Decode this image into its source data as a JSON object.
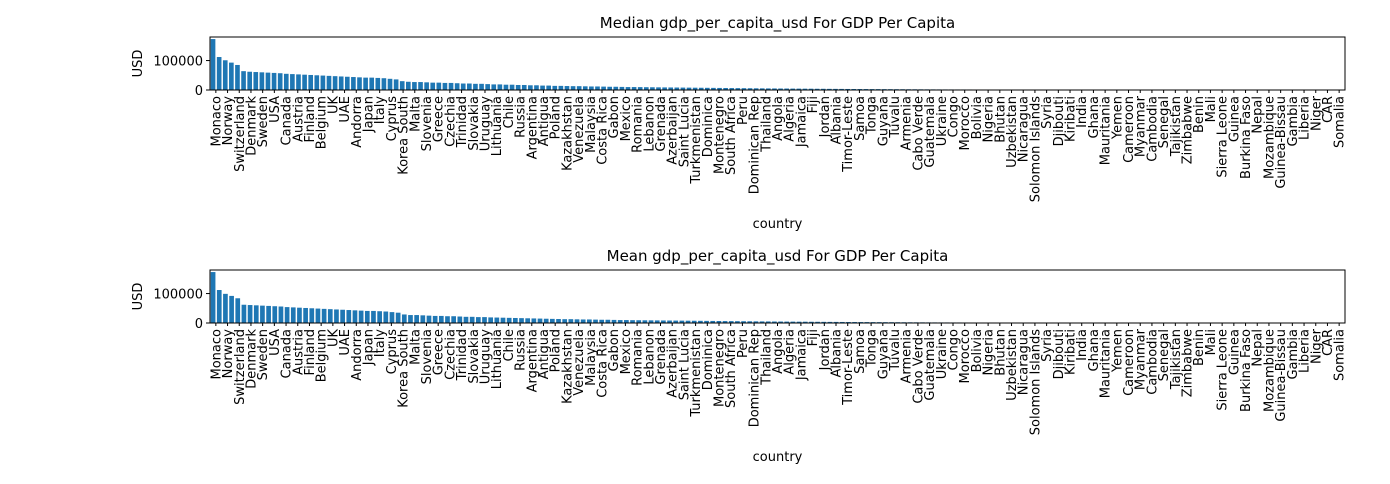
{
  "chart_data": [
    {
      "type": "bar",
      "title": "Median gdp_per_capita_usd For GDP Per Capita",
      "xlabel": "country",
      "ylabel": "USD",
      "yticks": [
        "0",
        "100000"
      ],
      "ylim": [
        0,
        180000
      ],
      "grid": false,
      "bar_color": "#1f77b4",
      "labeled_categories": [
        "Monaco",
        "Norway",
        "Switzerland",
        "Denmark",
        "Sweden",
        "USA",
        "Canada",
        "Austria",
        "Finland",
        "Belgium",
        "UK",
        "UAE",
        "Andorra",
        "Japan",
        "Italy",
        "Cyprus",
        "Korea South",
        "Malta",
        "Slovenia",
        "Greece",
        "Czechia",
        "Trinidad",
        "Slovakia",
        "Uruguay",
        "Lithuania",
        "Chile",
        "Russia",
        "Argentina",
        "Antigua",
        "Poland",
        "Kazakhstan",
        "Venezuela",
        "Malaysia",
        "Costa Rica",
        "Gabon",
        "Mexico",
        "Romania",
        "Lebanon",
        "Grenada",
        "Azerbaijan",
        "Saint Lucia",
        "Turkmenistan",
        "Dominica",
        "Montenegro",
        "South Africa",
        "Peru",
        "Dominican Rep",
        "Thailand",
        "Angola",
        "Algeria",
        "Jamaica",
        "Fiji",
        "Jordan",
        "Albania",
        "Timor-Leste",
        "Samoa",
        "Tonga",
        "Guyana",
        "Tuvalu",
        "Armenia",
        "Cabo Verde",
        "Guatemala",
        "Ukraine",
        "Congo",
        "Morocco",
        "Bolivia",
        "Nigeria",
        "Bhutan",
        "Uzbekistan",
        "Nicaragua",
        "Solomon Islands",
        "Syria",
        "Djibouti",
        "Kiribati",
        "India",
        "Ghana",
        "Mauritania",
        "Yemen",
        "Cameroon",
        "Myanmar",
        "Cambodia",
        "Senegal",
        "Tajikistan",
        "Zimbabwe",
        "Benin",
        "Mali",
        "Sierra Leone",
        "Guinea",
        "Burkina Faso",
        "Nepal",
        "Mozambique",
        "Guinea-Bissau",
        "Gambia",
        "Liberia",
        "Niger",
        "CAR",
        "Somalia"
      ],
      "values": [
        173000,
        112000,
        101000,
        93000,
        85000,
        64000,
        62000,
        61000,
        60000,
        59000,
        58000,
        57000,
        55000,
        54000,
        53000,
        52000,
        51000,
        50000,
        49000,
        48000,
        47000,
        46000,
        45000,
        44000,
        43000,
        42000,
        42000,
        41000,
        40000,
        38000,
        36000,
        30000,
        28000,
        27000,
        27000,
        26000,
        25000,
        25000,
        24000,
        24000,
        23000,
        22000,
        22000,
        21000,
        21000,
        20000,
        19000,
        19000,
        18000,
        18000,
        17000,
        17000,
        16000,
        16000,
        15000,
        15000,
        14000,
        14000,
        13500,
        13000,
        13000,
        12500,
        12000,
        12000,
        11500,
        11000,
        11000,
        10500,
        10000,
        10000,
        9800,
        9500,
        9300,
        9000,
        8800,
        8600,
        8400,
        8200,
        8000,
        7800,
        7600,
        7400,
        7200,
        7000,
        6800,
        6600,
        6400,
        6200,
        6000,
        5800,
        5600,
        5400,
        5300,
        5100,
        5000,
        4800,
        4700,
        4500,
        4400,
        4200,
        4100,
        3900,
        3800,
        3700,
        3500,
        3400,
        3300,
        3200,
        3100,
        3000,
        2900,
        2800,
        2700,
        2600,
        2500,
        2400,
        2300,
        2200,
        2100,
        2000,
        1950,
        1900,
        1850,
        1800,
        1750,
        1700,
        1650,
        1600,
        1550,
        1500,
        1450,
        1400,
        1350,
        1300,
        1250,
        1200,
        1150,
        1100,
        1050,
        1000,
        980,
        950,
        920,
        900,
        870,
        850,
        820,
        800,
        780,
        750,
        730,
        700,
        680,
        650,
        630,
        600,
        580,
        560,
        540,
        520,
        500,
        480,
        460,
        440,
        420,
        400,
        380,
        360,
        340,
        320,
        300,
        280,
        260,
        240,
        220,
        200,
        180,
        160,
        140,
        120,
        100,
        80,
        60,
        40,
        20,
        10
      ]
    },
    {
      "type": "bar",
      "title": "Mean gdp_per_capita_usd For GDP Per Capita",
      "xlabel": "country",
      "ylabel": "USD",
      "yticks": [
        "0",
        "100000"
      ],
      "ylim": [
        0,
        180000
      ],
      "grid": false,
      "bar_color": "#1f77b4",
      "labeled_categories": [
        "Monaco",
        "Norway",
        "Switzerland",
        "Denmark",
        "Sweden",
        "USA",
        "Canada",
        "Austria",
        "Finland",
        "Belgium",
        "UK",
        "UAE",
        "Andorra",
        "Japan",
        "Italy",
        "Cyprus",
        "Korea South",
        "Malta",
        "Slovenia",
        "Greece",
        "Czechia",
        "Trinidad",
        "Slovakia",
        "Uruguay",
        "Lithuania",
        "Chile",
        "Russia",
        "Argentina",
        "Antigua",
        "Poland",
        "Kazakhstan",
        "Venezuela",
        "Malaysia",
        "Costa Rica",
        "Gabon",
        "Mexico",
        "Romania",
        "Lebanon",
        "Grenada",
        "Azerbaijan",
        "Saint Lucia",
        "Turkmenistan",
        "Dominica",
        "Montenegro",
        "South Africa",
        "Peru",
        "Dominican Rep",
        "Thailand",
        "Angola",
        "Algeria",
        "Jamaica",
        "Fiji",
        "Jordan",
        "Albania",
        "Timor-Leste",
        "Samoa",
        "Tonga",
        "Guyana",
        "Tuvalu",
        "Armenia",
        "Cabo Verde",
        "Guatemala",
        "Ukraine",
        "Congo",
        "Morocco",
        "Bolivia",
        "Nigeria",
        "Bhutan",
        "Uzbekistan",
        "Nicaragua",
        "Solomon Islands",
        "Syria",
        "Djibouti",
        "Kiribati",
        "India",
        "Ghana",
        "Mauritania",
        "Yemen",
        "Cameroon",
        "Myanmar",
        "Cambodia",
        "Senegal",
        "Tajikistan",
        "Zimbabwe",
        "Benin",
        "Mali",
        "Sierra Leone",
        "Guinea",
        "Burkina Faso",
        "Nepal",
        "Mozambique",
        "Guinea-Bissau",
        "Gambia",
        "Liberia",
        "Niger",
        "CAR",
        "Somalia"
      ],
      "values": [
        173000,
        112000,
        99000,
        92000,
        84000,
        62000,
        61000,
        60000,
        59000,
        58000,
        57000,
        56000,
        54000,
        53000,
        52000,
        51000,
        50000,
        49000,
        48000,
        47000,
        46000,
        45000,
        44000,
        43000,
        42000,
        41000,
        41000,
        40000,
        39000,
        37000,
        35000,
        29000,
        27000,
        27000,
        26000,
        25000,
        24000,
        24000,
        23000,
        23000,
        22000,
        21000,
        21000,
        20000,
        20000,
        19000,
        18500,
        18000,
        17500,
        17000,
        16500,
        16000,
        15500,
        15000,
        14500,
        14000,
        13500,
        13000,
        13000,
        12500,
        12000,
        12000,
        11500,
        11000,
        11000,
        10500,
        10000,
        10000,
        9600,
        9400,
        9200,
        9000,
        8800,
        8600,
        8400,
        8200,
        8000,
        7800,
        7600,
        7400,
        7200,
        7000,
        6800,
        6600,
        6400,
        6200,
        6000,
        5800,
        5600,
        5400,
        5300,
        5100,
        5000,
        4800,
        4700,
        4500,
        4400,
        4200,
        4100,
        3900,
        3800,
        3700,
        3500,
        3400,
        3300,
        3200,
        3100,
        3000,
        2900,
        2800,
        2700,
        2600,
        2500,
        2400,
        2300,
        2200,
        2100,
        2000,
        1950,
        1900,
        1850,
        1800,
        1750,
        1700,
        1650,
        1600,
        1550,
        1500,
        1450,
        1400,
        1350,
        1300,
        1250,
        1200,
        1150,
        1100,
        1050,
        1000,
        980,
        950,
        920,
        900,
        870,
        850,
        820,
        800,
        780,
        750,
        730,
        700,
        680,
        650,
        630,
        600,
        580,
        560,
        540,
        520,
        500,
        480,
        460,
        440,
        420,
        400,
        380,
        360,
        340,
        320,
        300,
        280,
        260,
        240,
        220,
        200,
        180,
        160,
        140,
        120,
        100,
        80,
        60,
        40,
        20,
        10
      ]
    }
  ]
}
